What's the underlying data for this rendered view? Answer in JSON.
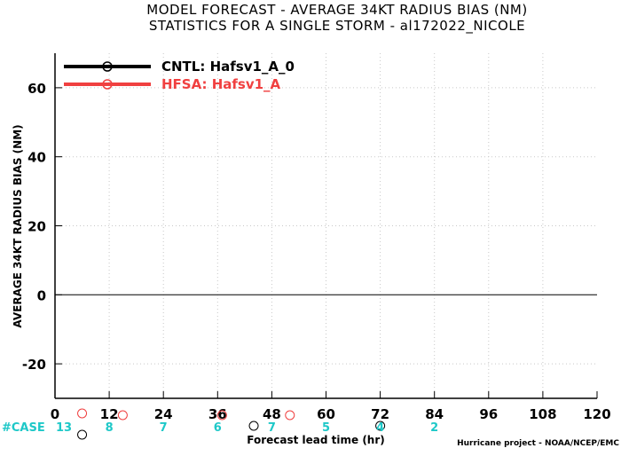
{
  "chart_data": {
    "type": "line",
    "title": "MODEL FORECAST - AVERAGE 34KT RADIUS BIAS (NM)",
    "subtitle": "STATISTICS FOR A SINGLE STORM - al172022_NICOLE",
    "xlabel": "Forecast lead time (hr)",
    "ylabel": "AVERAGE 34KT RADIUS BIAS (NM)",
    "xlim": [
      0,
      120
    ],
    "ylim": [
      -30,
      70
    ],
    "x_ticks": [
      0,
      12,
      24,
      36,
      48,
      60,
      72,
      84,
      96,
      108,
      120
    ],
    "y_ticks": [
      -20,
      0,
      20,
      40,
      60
    ],
    "grid": true,
    "legend_position": "top-left",
    "series": [
      {
        "name": "CNTL: Hafsv1_A_0",
        "color": "#000000"
      },
      {
        "name": "HFSA: Hafsv1_A",
        "color": "#f04040"
      }
    ],
    "case_label": "#CASE",
    "case_counts": {
      "x": [
        0,
        12,
        24,
        36,
        48,
        60,
        72,
        84
      ],
      "values": [
        "13",
        "8",
        "7",
        "6",
        "7",
        "5",
        "4",
        "2"
      ]
    },
    "credit": "Hurricane project - NOAA/NCEP/EMC"
  }
}
